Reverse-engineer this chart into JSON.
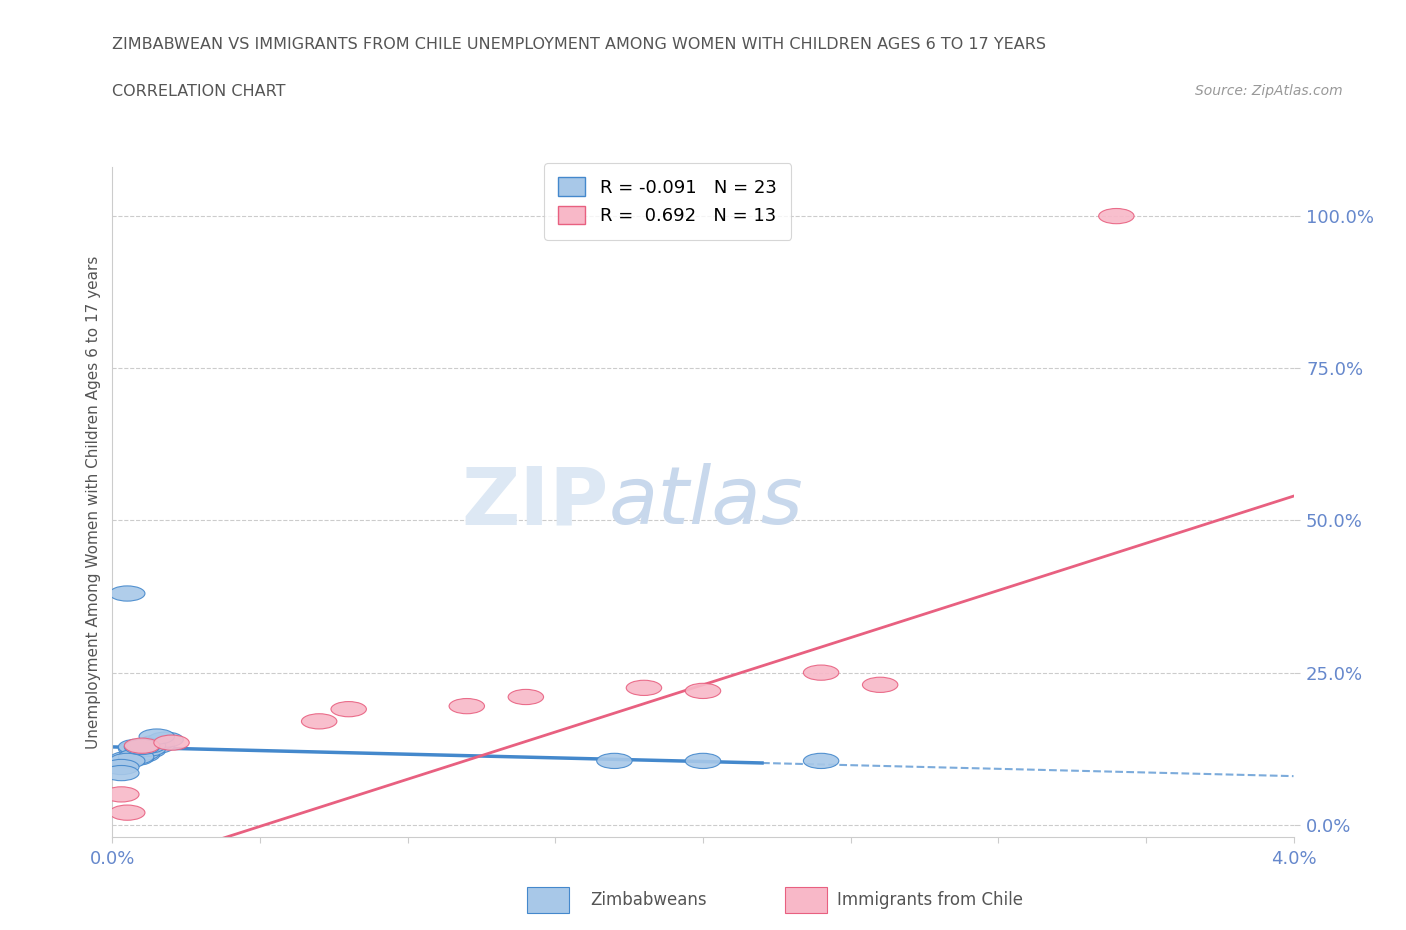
{
  "title_line1": "ZIMBABWEAN VS IMMIGRANTS FROM CHILE UNEMPLOYMENT AMONG WOMEN WITH CHILDREN AGES 6 TO 17 YEARS",
  "title_line2": "CORRELATION CHART",
  "source_text": "Source: ZipAtlas.com",
  "ylabel": "Unemployment Among Women with Children Ages 6 to 17 years",
  "xlim": [
    0.0,
    0.04
  ],
  "ylim": [
    -0.02,
    1.08
  ],
  "yticks": [
    0.0,
    0.25,
    0.5,
    0.75,
    1.0
  ],
  "ytick_labels": [
    "0.0%",
    "25.0%",
    "50.0%",
    "75.0%",
    "100.0%"
  ],
  "xticks": [
    0.0,
    0.005,
    0.01,
    0.015,
    0.02,
    0.025,
    0.03,
    0.035,
    0.04
  ],
  "xtick_labels": [
    "0.0%",
    "",
    "",
    "",
    "",
    "",
    "",
    "",
    "4.0%"
  ],
  "blue_x": [
    0.0008,
    0.001,
    0.0012,
    0.0015,
    0.001,
    0.0008,
    0.001,
    0.0012,
    0.0015,
    0.0018,
    0.0008,
    0.0005,
    0.0008,
    0.0012,
    0.0015,
    0.0005,
    0.0003,
    0.0003,
    0.0005,
    0.001,
    0.02,
    0.017,
    0.024
  ],
  "blue_y": [
    0.125,
    0.12,
    0.122,
    0.13,
    0.115,
    0.11,
    0.118,
    0.125,
    0.135,
    0.14,
    0.128,
    0.108,
    0.112,
    0.13,
    0.145,
    0.105,
    0.095,
    0.085,
    0.38,
    0.128,
    0.105,
    0.105,
    0.105
  ],
  "pink_x": [
    0.0003,
    0.0005,
    0.001,
    0.002,
    0.007,
    0.008,
    0.012,
    0.014,
    0.018,
    0.02,
    0.024,
    0.026,
    0.034
  ],
  "pink_y": [
    0.05,
    0.02,
    0.13,
    0.135,
    0.17,
    0.19,
    0.195,
    0.21,
    0.225,
    0.22,
    0.25,
    0.23,
    1.0
  ],
  "blue_R": -0.091,
  "blue_N": 23,
  "pink_R": 0.692,
  "pink_N": 13,
  "blue_color": "#a8c8e8",
  "pink_color": "#f8b8c8",
  "blue_line_color": "#4488cc",
  "pink_line_color": "#e86080",
  "axis_color": "#6688cc",
  "grid_color": "#cccccc",
  "title_color": "#555555",
  "watermark_color": "#dde8f4",
  "legend_box_color": "#ffffff",
  "blue_intercept": 0.128,
  "blue_slope": -1.2,
  "pink_intercept": -0.08,
  "pink_slope": 15.5
}
